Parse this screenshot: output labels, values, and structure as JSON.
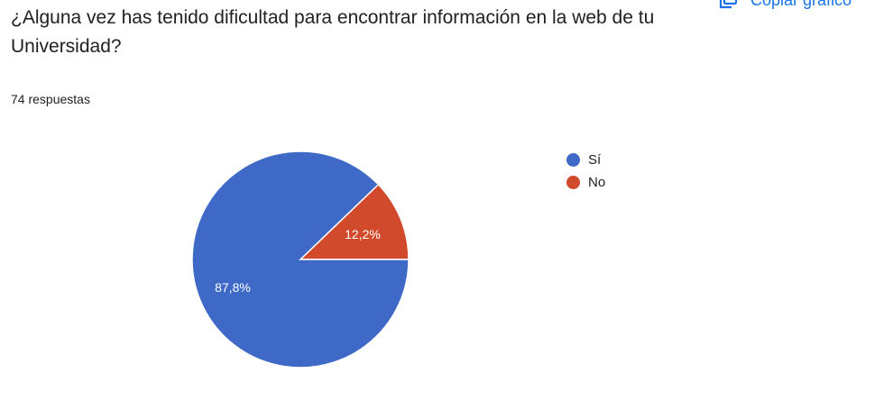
{
  "question": {
    "title": "¿Alguna vez has tenido dificultad para encontrar información en la web de tu Universidad?"
  },
  "responses": {
    "count_label": "74 respuestas"
  },
  "toolbar": {
    "copy_label": "Copiar gráfico",
    "copy_icon": "copy-icon"
  },
  "colors": {
    "accent": "#1a73e8",
    "si": "#3e69c7",
    "no": "#d14a2c"
  },
  "chart_data": {
    "type": "pie",
    "categories": [
      "Sí",
      "No"
    ],
    "values": [
      87.8,
      12.2
    ],
    "labels": [
      "87,8%",
      "12,2%"
    ],
    "colors": [
      "#3e69c7",
      "#d14a2c"
    ],
    "legend_position": "right"
  }
}
